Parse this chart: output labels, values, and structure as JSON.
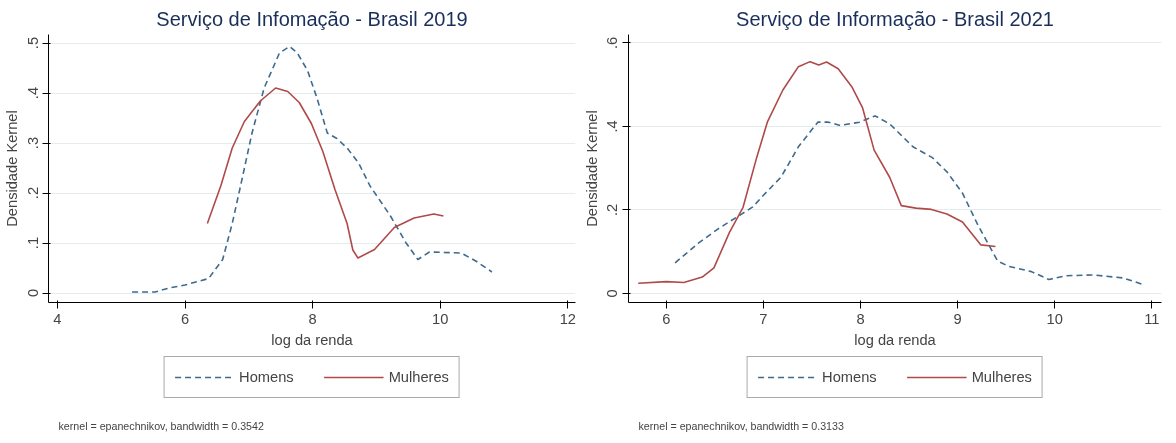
{
  "chart_data": [
    {
      "type": "line",
      "title": "Serviço de Infomação - Brasil 2019",
      "xlabel": "log da renda",
      "ylabel": "Densidade Kernel",
      "xlim": [
        3.86,
        12.12
      ],
      "xticks": [
        4,
        6,
        8,
        10,
        12
      ],
      "ylim": [
        -0.019,
        0.517
      ],
      "yticks": [
        {
          "value": 0,
          "label": "0"
        },
        {
          "value": 0.1,
          "label": ".1"
        },
        {
          "value": 0.2,
          "label": ".2"
        },
        {
          "value": 0.3,
          "label": ".3"
        },
        {
          "value": 0.4,
          "label": ".4"
        },
        {
          "value": 0.5,
          "label": ".5"
        }
      ],
      "grid": "y",
      "legend": "bottom",
      "annotations": [
        "kernel = epanechnikov, bandwidth = 0.3542"
      ],
      "series": [
        {
          "name": "Homens",
          "color": "#3e6a8e",
          "line_style": "dashed",
          "x": [
            5.17,
            5.53,
            5.75,
            6.0,
            6.37,
            6.59,
            6.74,
            6.87,
            7.05,
            7.24,
            7.48,
            7.64,
            7.76,
            7.92,
            8.07,
            8.23,
            8.38,
            8.54,
            8.72,
            8.9,
            9.22,
            9.46,
            9.65,
            9.83,
            10.33,
            10.57,
            10.81
          ],
          "values": [
            0.002,
            0.002,
            0.01,
            0.016,
            0.029,
            0.067,
            0.139,
            0.214,
            0.32,
            0.41,
            0.48,
            0.493,
            0.48,
            0.445,
            0.389,
            0.32,
            0.309,
            0.29,
            0.26,
            0.214,
            0.154,
            0.101,
            0.067,
            0.082,
            0.08,
            0.063,
            0.042
          ]
        },
        {
          "name": "Mulheres",
          "color": "#b04a4a",
          "line_style": "solid",
          "x": [
            6.35,
            6.56,
            6.74,
            6.93,
            7.18,
            7.42,
            7.61,
            7.79,
            7.98,
            8.16,
            8.35,
            8.54,
            8.63,
            8.71,
            8.97,
            9.28,
            9.59,
            9.9,
            10.05
          ],
          "values": [
            0.139,
            0.214,
            0.29,
            0.343,
            0.384,
            0.41,
            0.403,
            0.381,
            0.339,
            0.283,
            0.207,
            0.139,
            0.086,
            0.07,
            0.087,
            0.131,
            0.15,
            0.158,
            0.154
          ]
        }
      ]
    },
    {
      "type": "line",
      "title": "Serviço de Informação - Brasil 2021",
      "xlabel": "log da renda",
      "ylabel": "Densidade Kernel",
      "xlim": [
        5.61,
        11.1
      ],
      "xticks": [
        6,
        7,
        8,
        9,
        10,
        11
      ],
      "ylim": [
        -0.022,
        0.62
      ],
      "yticks": [
        {
          "value": 0,
          "label": "0"
        },
        {
          "value": 0.2,
          "label": ".2"
        },
        {
          "value": 0.4,
          "label": ".4"
        },
        {
          "value": 0.6,
          "label": ".6"
        }
      ],
      "grid": "y",
      "legend": "bottom",
      "annotations": [
        "kernel = epanechnikov, bandwidth = 0.3133"
      ],
      "series": [
        {
          "name": "Homens",
          "color": "#3e6a8e",
          "line_style": "dashed",
          "x": [
            6.09,
            6.33,
            6.53,
            6.77,
            6.89,
            7.0,
            7.18,
            7.36,
            7.56,
            7.67,
            7.79,
            7.99,
            8.15,
            8.3,
            8.54,
            8.74,
            8.89,
            9.05,
            9.21,
            9.41,
            9.52,
            9.76,
            9.94,
            10.11,
            10.39,
            10.7,
            10.9
          ],
          "values": [
            0.073,
            0.12,
            0.154,
            0.189,
            0.207,
            0.235,
            0.278,
            0.351,
            0.41,
            0.41,
            0.402,
            0.41,
            0.425,
            0.406,
            0.351,
            0.325,
            0.291,
            0.24,
            0.163,
            0.078,
            0.065,
            0.052,
            0.033,
            0.042,
            0.044,
            0.037,
            0.022
          ]
        },
        {
          "name": "Mulheres",
          "color": "#b04a4a",
          "line_style": "solid",
          "x": [
            5.71,
            6.0,
            6.18,
            6.37,
            6.49,
            6.65,
            6.79,
            6.93,
            7.04,
            7.2,
            7.36,
            7.48,
            7.57,
            7.65,
            7.77,
            7.91,
            8.02,
            8.14,
            8.3,
            8.42,
            8.57,
            8.73,
            8.89,
            9.05,
            9.24,
            9.39
          ],
          "values": [
            0.024,
            0.028,
            0.026,
            0.039,
            0.061,
            0.146,
            0.206,
            0.325,
            0.41,
            0.487,
            0.543,
            0.555,
            0.547,
            0.554,
            0.538,
            0.495,
            0.445,
            0.343,
            0.278,
            0.21,
            0.204,
            0.201,
            0.19,
            0.171,
            0.116,
            0.112
          ]
        }
      ]
    }
  ]
}
